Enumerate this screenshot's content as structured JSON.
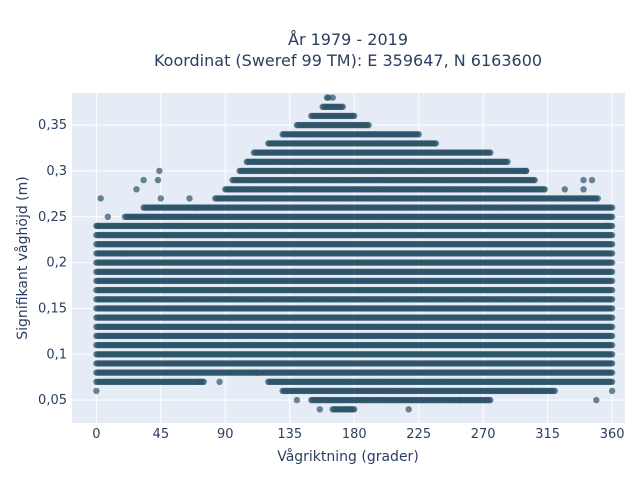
{
  "chart_data": {
    "type": "scatter",
    "title_line1": "År 1979 - 2019",
    "title_line2": "Koordinat (Sweref 99 TM): E 359647, N 6163600",
    "xlabel": "Vågriktning (grader)",
    "ylabel": "Signifikant våghöjd (m)",
    "xlim": [
      -17,
      369
    ],
    "ylim": [
      0.025,
      0.385
    ],
    "xticks": [
      0,
      45,
      90,
      135,
      180,
      225,
      270,
      315,
      360
    ],
    "xtick_labels": [
      "0",
      "45",
      "90",
      "135",
      "180",
      "225",
      "270",
      "315",
      "360"
    ],
    "yticks": [
      0.05,
      0.1,
      0.15,
      0.2,
      0.25,
      0.3,
      0.35
    ],
    "ytick_labels": [
      "0,05",
      "0,1",
      "0,15",
      "0,2",
      "0,25",
      "0,3",
      "0,35"
    ],
    "grid": true,
    "marker_color": "#2e5469",
    "background_color": "#e5ecf6",
    "height_levels": [
      0.04,
      0.05,
      0.06,
      0.07,
      0.08,
      0.09,
      0.1,
      0.11,
      0.12,
      0.13,
      0.14,
      0.15,
      0.16,
      0.17,
      0.18,
      0.19,
      0.2,
      0.21,
      0.22,
      0.23,
      0.24,
      0.25,
      0.26,
      0.27,
      0.28,
      0.29,
      0.3,
      0.31,
      0.32,
      0.33,
      0.34,
      0.35,
      0.36,
      0.37,
      0.38
    ],
    "envelope": [
      {
        "direction": 0,
        "min": 0.06,
        "max": 0.24
      },
      {
        "direction": 20,
        "min": 0.07,
        "max": 0.25
      },
      {
        "direction": 45,
        "min": 0.07,
        "max": 0.27
      },
      {
        "direction": 75,
        "min": 0.07,
        "max": 0.26
      },
      {
        "direction": 90,
        "min": 0.08,
        "max": 0.28
      },
      {
        "direction": 110,
        "min": 0.08,
        "max": 0.32
      },
      {
        "direction": 130,
        "min": 0.06,
        "max": 0.34
      },
      {
        "direction": 150,
        "min": 0.05,
        "max": 0.36
      },
      {
        "direction": 165,
        "min": 0.04,
        "max": 0.38
      },
      {
        "direction": 180,
        "min": 0.04,
        "max": 0.36
      },
      {
        "direction": 200,
        "min": 0.05,
        "max": 0.34
      },
      {
        "direction": 225,
        "min": 0.05,
        "max": 0.34
      },
      {
        "direction": 250,
        "min": 0.05,
        "max": 0.32
      },
      {
        "direction": 275,
        "min": 0.05,
        "max": 0.32
      },
      {
        "direction": 300,
        "min": 0.06,
        "max": 0.3
      },
      {
        "direction": 320,
        "min": 0.06,
        "max": 0.27
      },
      {
        "direction": 340,
        "min": 0.07,
        "max": 0.28
      },
      {
        "direction": 360,
        "min": 0.06,
        "max": 0.26
      }
    ],
    "outliers": [
      {
        "x": 1,
        "y": 0.24
      },
      {
        "x": 3,
        "y": 0.27
      },
      {
        "x": 8,
        "y": 0.25
      },
      {
        "x": 20,
        "y": 0.21
      },
      {
        "x": 28,
        "y": 0.28
      },
      {
        "x": 33,
        "y": 0.29
      },
      {
        "x": 42,
        "y": 0.24
      },
      {
        "x": 43,
        "y": 0.29
      },
      {
        "x": 44,
        "y": 0.3
      },
      {
        "x": 56,
        "y": 0.24
      },
      {
        "x": 65,
        "y": 0.27
      },
      {
        "x": 69,
        "y": 0.26
      },
      {
        "x": 72,
        "y": 0.07
      },
      {
        "x": 86,
        "y": 0.07
      },
      {
        "x": 112,
        "y": 0.08
      },
      {
        "x": 140,
        "y": 0.05
      },
      {
        "x": 156,
        "y": 0.04
      },
      {
        "x": 161,
        "y": 0.38
      },
      {
        "x": 162,
        "y": 0.38
      },
      {
        "x": 175,
        "y": 0.04
      },
      {
        "x": 218,
        "y": 0.04
      },
      {
        "x": 254,
        "y": 0.05
      },
      {
        "x": 262,
        "y": 0.05
      },
      {
        "x": 300,
        "y": 0.3
      },
      {
        "x": 304,
        "y": 0.06
      },
      {
        "x": 327,
        "y": 0.28
      },
      {
        "x": 340,
        "y": 0.29
      },
      {
        "x": 346,
        "y": 0.29
      },
      {
        "x": 349,
        "y": 0.05
      },
      {
        "x": 356,
        "y": 0.24
      }
    ]
  }
}
